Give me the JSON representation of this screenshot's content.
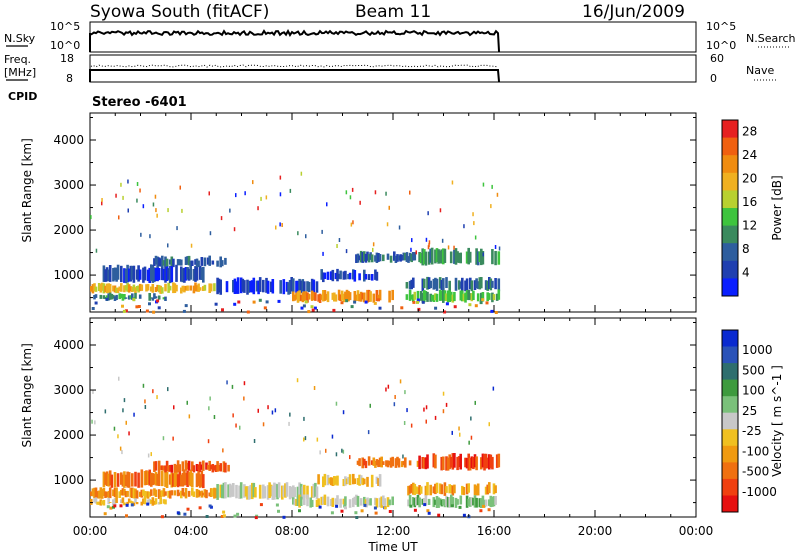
{
  "header": {
    "station": "Syowa South (fitACF)",
    "beam": "Beam 11",
    "date": "16/Jun/2009"
  },
  "top_panels": {
    "sky_label": "N.Sky",
    "sky_ticks": [
      "10^5",
      "10^0"
    ],
    "search_label": "N.Search",
    "search_ticks": [
      "10^5",
      "10^0"
    ],
    "freq_label_1": "Freq.",
    "freq_label_2": "[MHz]",
    "freq_ticks": [
      "18",
      "8"
    ],
    "nave_label": "Nave",
    "nave_ticks": [
      "60",
      "0"
    ],
    "cpid_label": "CPID",
    "cpid_value": "Stereo -6401"
  },
  "chart_data": [
    {
      "type": "heatmap",
      "name": "power-panel",
      "ylabel": "Slant Range [km]",
      "xlabel": "Time UT",
      "x_ticks": [
        "00:00",
        "04:00",
        "08:00",
        "12:00",
        "16:00",
        "20:00",
        "00:00"
      ],
      "x_range_hours": [
        0,
        24
      ],
      "y_ticks": [
        1000,
        2000,
        3000,
        4000
      ],
      "y_range_km": [
        180,
        4600
      ],
      "data_end_hour": 16.2,
      "colorbar": {
        "label": "Power [dB]",
        "ticks": [
          "4",
          "8",
          "12",
          "16",
          "20",
          "24",
          "28"
        ],
        "colors": [
          "#0a1fff",
          "#1f3fb0",
          "#2e5e9e",
          "#3a8a5e",
          "#3ec43e",
          "#b8d030",
          "#f0b020",
          "#f08c10",
          "#f06010",
          "#e62020"
        ]
      },
      "bands": [
        {
          "t0": 0.0,
          "t1": 5.0,
          "r0": 620,
          "r1": 780,
          "color_index": 6
        },
        {
          "t0": 0.0,
          "t1": 3.0,
          "r0": 460,
          "r1": 560,
          "color_index": 3
        },
        {
          "t0": 0.5,
          "t1": 4.5,
          "r0": 860,
          "r1": 1180,
          "color_index": 1
        },
        {
          "t0": 2.5,
          "t1": 5.5,
          "r0": 1200,
          "r1": 1380,
          "color_index": 2
        },
        {
          "t0": 5.0,
          "t1": 9.0,
          "r0": 600,
          "r1": 900,
          "color_index": 1
        },
        {
          "t0": 8.0,
          "t1": 12.0,
          "r0": 420,
          "r1": 620,
          "color_index": 7
        },
        {
          "t0": 9.0,
          "t1": 11.5,
          "r0": 880,
          "r1": 1080,
          "color_index": 1
        },
        {
          "t0": 10.5,
          "t1": 13.0,
          "r0": 1300,
          "r1": 1480,
          "color_index": 2
        },
        {
          "t0": 13.0,
          "t1": 16.2,
          "r0": 1250,
          "r1": 1550,
          "color_index": 3
        },
        {
          "t0": 12.5,
          "t1": 16.2,
          "r0": 680,
          "r1": 900,
          "color_index": 2
        },
        {
          "t0": 12.5,
          "t1": 16.2,
          "r0": 420,
          "r1": 620,
          "color_index": 4
        }
      ]
    },
    {
      "type": "heatmap",
      "name": "velocity-panel",
      "ylabel": "Slant Range [km]",
      "xlabel": "Time UT",
      "x_ticks": [
        "00:00",
        "04:00",
        "08:00",
        "12:00",
        "16:00",
        "20:00",
        "00:00"
      ],
      "x_range_hours": [
        0,
        24
      ],
      "y_ticks": [
        1000,
        2000,
        3000,
        4000
      ],
      "y_range_km": [
        180,
        4600
      ],
      "data_end_hour": 16.2,
      "colorbar": {
        "label": "Velocity [ m s^-1 ]",
        "ticks": [
          "1000",
          "500",
          "100",
          "25",
          "-25",
          "-100",
          "-500",
          "-1000"
        ],
        "colors": [
          "#0a2ad0",
          "#2a52b8",
          "#2e6e6e",
          "#3e9a3e",
          "#7ac07a",
          "#c8c8c8",
          "#f0c020",
          "#f09a10",
          "#f07010",
          "#f04010",
          "#e61010"
        ]
      },
      "bands": [
        {
          "t0": 0.0,
          "t1": 5.0,
          "r0": 620,
          "r1": 780,
          "color_index": 7
        },
        {
          "t0": 0.0,
          "t1": 3.0,
          "r0": 460,
          "r1": 560,
          "color_index": 6
        },
        {
          "t0": 0.5,
          "t1": 4.5,
          "r0": 860,
          "r1": 1180,
          "color_index": 8
        },
        {
          "t0": 2.5,
          "t1": 5.5,
          "r0": 1200,
          "r1": 1380,
          "color_index": 9
        },
        {
          "t0": 5.0,
          "t1": 9.0,
          "r0": 600,
          "r1": 900,
          "color_index": 5
        },
        {
          "t0": 8.0,
          "t1": 12.0,
          "r0": 420,
          "r1": 620,
          "color_index": 5
        },
        {
          "t0": 9.0,
          "t1": 11.5,
          "r0": 880,
          "r1": 1080,
          "color_index": 6
        },
        {
          "t0": 10.5,
          "t1": 13.0,
          "r0": 1300,
          "r1": 1480,
          "color_index": 8
        },
        {
          "t0": 13.0,
          "t1": 16.2,
          "r0": 1250,
          "r1": 1550,
          "color_index": 9
        },
        {
          "t0": 12.5,
          "t1": 16.2,
          "r0": 680,
          "r1": 900,
          "color_index": 7
        },
        {
          "t0": 12.5,
          "t1": 16.2,
          "r0": 420,
          "r1": 620,
          "color_index": 4
        }
      ]
    }
  ]
}
